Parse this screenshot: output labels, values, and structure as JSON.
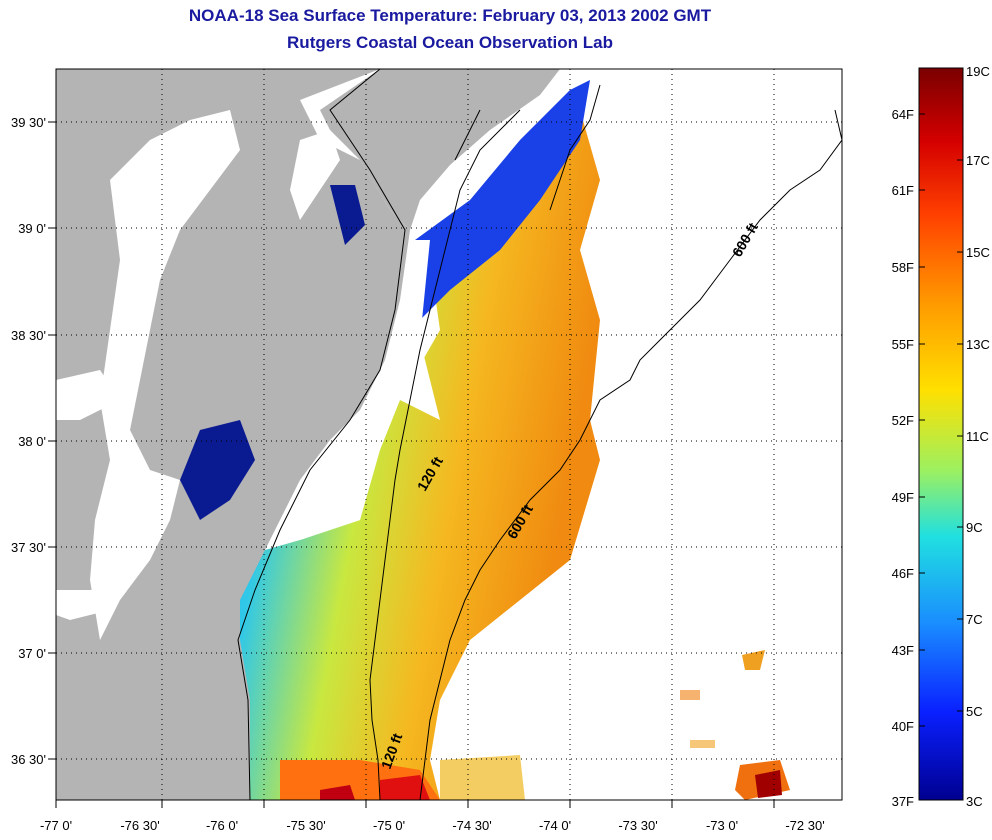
{
  "header": {
    "title": "NOAA-18 Sea Surface Temperature:  February 03, 2013 2002 GMT",
    "subtitle": "Rutgers Coastal Ocean Observation Lab"
  },
  "map": {
    "lon_labels": [
      "-77 0'",
      "-76 30'",
      "-76 0'",
      "-75 30'",
      "-75 0'",
      "-74 30'",
      "-74 0'",
      "-73 30'",
      "-73 0'",
      "-72 30'"
    ],
    "lat_labels": [
      "39 30'",
      "39 0'",
      "38 30'",
      "38 0'",
      "37 30'",
      "37 0'",
      "36 30'"
    ],
    "contour_labels": [
      "600 ft",
      "120 ft",
      "600 ft",
      "120 ft"
    ],
    "land_color": "#b4b4b4",
    "cloud_color": "#ffffff"
  },
  "colorbar": {
    "fahrenheit_labels": [
      "64F",
      "61F",
      "58F",
      "55F",
      "52F",
      "49F",
      "46F",
      "43F",
      "40F",
      "37F"
    ],
    "celsius_labels": [
      "19C",
      "17C",
      "15C",
      "13C",
      "11C",
      "9C",
      "7C",
      "5C",
      "3C"
    ],
    "range_c": [
      3,
      19
    ],
    "colors": [
      "#7a0000",
      "#d40000",
      "#ff4000",
      "#ff9900",
      "#ffe000",
      "#9cf060",
      "#20e0e0",
      "#1a8cff",
      "#0a20ff",
      "#000090"
    ]
  }
}
